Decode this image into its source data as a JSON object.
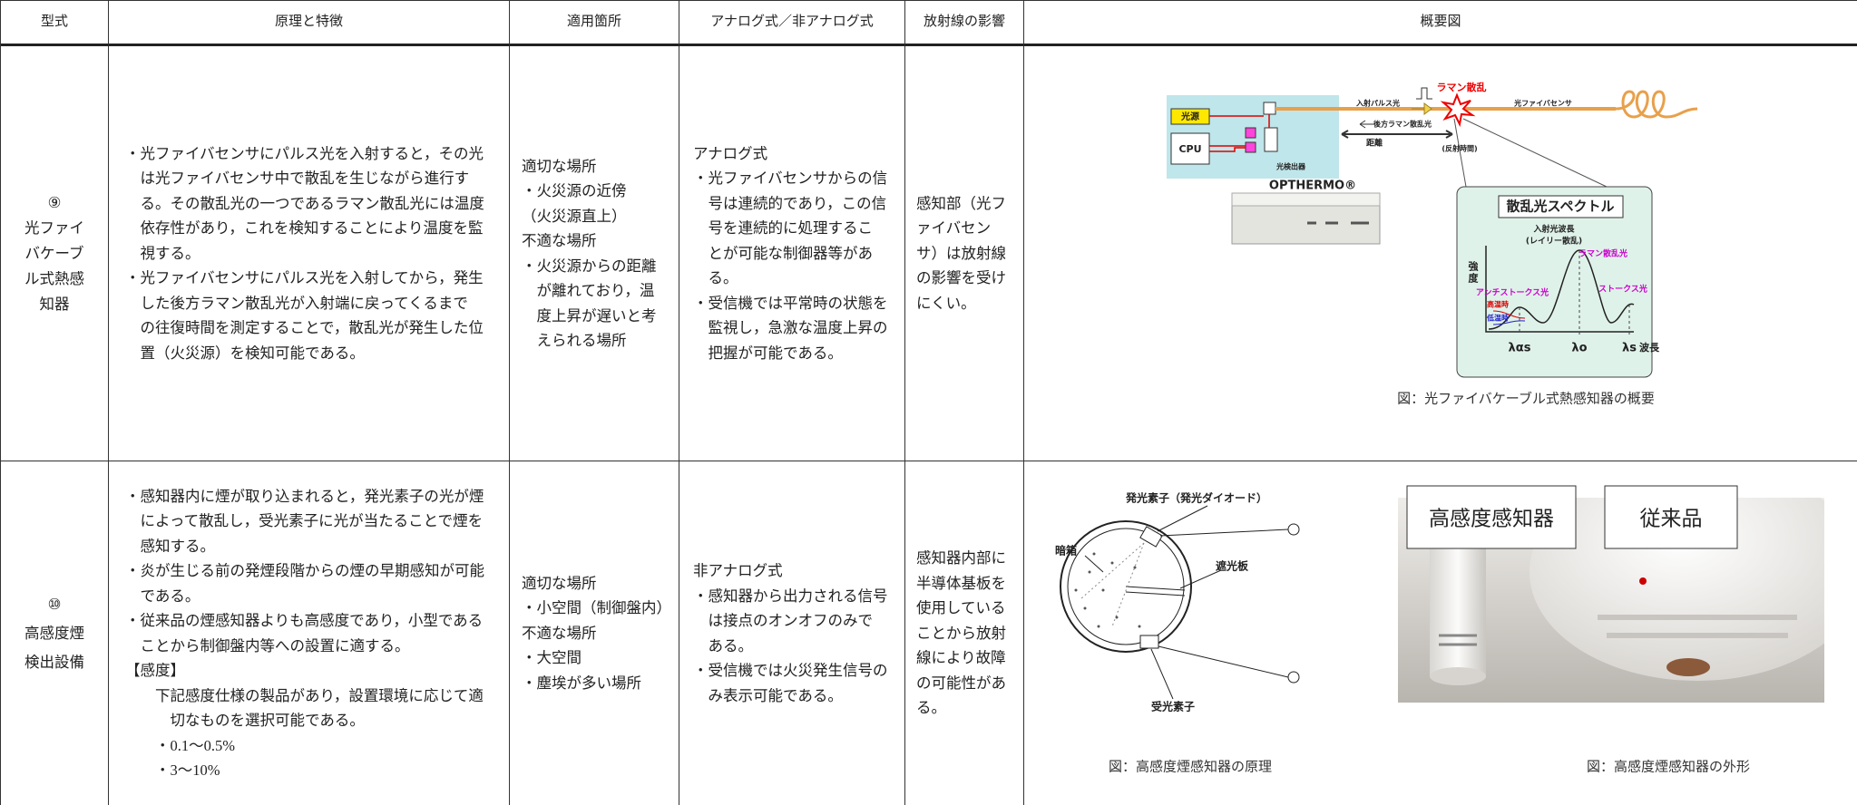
{
  "table": {
    "headers": [
      "型式",
      "原理と特徴",
      "適用箇所",
      "アナログ式／非アナログ式",
      "放射線の影響",
      "概要図"
    ],
    "rows": [
      {
        "type": [
          "⑨",
          "光ファイ",
          "バケーブ",
          "ル式熱感",
          "知器"
        ],
        "principle": [
          [
            "・光ファイバセンサにパルス光を入射すると，その光",
            "は光ファイバセンサ中で散乱を生じながら進行す",
            "る。その散乱光の一つであるラマン散乱光には温度",
            "依存性があり，これを検知することにより温度を監",
            "視する。"
          ],
          [
            "・光ファイバセンサにパルス光を入射してから，発生",
            "した後方ラマン散乱光が入射端に戻ってくるまで",
            "の往復時間を測定することで，散乱光が発生した位",
            "置（火災源）を検知可能である。"
          ]
        ],
        "application": [
          [
            "適切な場所"
          ],
          [
            "・火災源の近傍"
          ],
          [
            "（火災源直上）"
          ],
          [
            "不適な場所"
          ],
          [
            "・火災源からの距離",
            "が離れており，温",
            "度上昇が遅いと考",
            "えられる場所"
          ]
        ],
        "analog": [
          [
            "アナログ式"
          ],
          [
            "・光ファイバセンサからの信",
            "号は連続的であり，この信",
            "号を連続的に処理するこ",
            "とが可能な制御器等があ",
            "る。"
          ],
          [
            "・受信機では平常時の状態を",
            "監視し，急激な温度上昇の",
            "把握が可能である。"
          ]
        ],
        "radiation": [
          [
            "感知部（光フ"
          ],
          [
            "ァイバセン"
          ],
          [
            "サ）は放射線"
          ],
          [
            "の影響を受け"
          ],
          [
            "にくい。"
          ]
        ],
        "figures": [
          {
            "labels": [
              "光源",
              "CPU",
              "入射パルス光",
              "ラマン散乱",
              "光ファイバセンサ",
              "後方ラマン散乱光",
              "距離",
              "(反射時間)",
              "光検出器",
              "OPTHERMO®",
              "散乱光スペクトル",
              "入射光波長",
              "(レイリー散乱)",
              "ラマン散乱光",
              "強度",
              "アンチストークス光",
              "ストークス光",
              "高温時",
              "低温時",
              "λαs",
              "λo",
              "λs",
              "波長"
            ],
            "caption": "図：光ファイバケーブル式熱感知器の概要"
          }
        ]
      },
      {
        "type": [
          "⑩",
          "高感度煙",
          "検出設備"
        ],
        "principle": [
          [
            "・感知器内に煙が取り込まれると，発光素子の光が煙",
            "によって散乱し，受光素子に光が当たることで煙を",
            "感知する。"
          ],
          [
            "・炎が生じる前の発煙段階からの煙の早期感知が可能",
            "である。"
          ],
          [
            "・従来品の煙感知器よりも高感度であり，小型である",
            "ことから制御盤内等への設置に適する。"
          ],
          [
            "【感度】"
          ],
          [
            "下記感度仕様の製品があり，設置環境に応じて適",
            "切なものを選択可能である。"
          ],
          [
            "・0.1～0.5%"
          ],
          [
            "・3～10%"
          ]
        ],
        "application": [
          [
            "適切な場所"
          ],
          [
            "・小空間（制御盤内）"
          ],
          [
            "不適な場所"
          ],
          [
            "・大空間"
          ],
          [
            "・塵埃が多い場所"
          ]
        ],
        "analog": [
          [
            "非アナログ式"
          ],
          [
            "・感知器から出力される信号",
            "は接点のオンオフのみで",
            "ある。"
          ],
          [
            "・受信機では火災発生信号の",
            "み表示可能である。"
          ]
        ],
        "radiation": [
          [
            "感知器内部に"
          ],
          [
            "半導体基板を"
          ],
          [
            "使用している"
          ],
          [
            "ことから放射"
          ],
          [
            "線により故障"
          ],
          [
            "の可能性があ"
          ],
          [
            "る。"
          ]
        ],
        "figures": [
          {
            "labels": [
              "発光素子（発光ダイオード）",
              "暗箱",
              "遮光板",
              "受光素子"
            ],
            "caption": "図：高感度煙感知器の原理"
          },
          {
            "labels": [
              "高感度感知器",
              "従来品"
            ],
            "caption": "図：高感度煙感知器の外形"
          }
        ]
      }
    ]
  }
}
